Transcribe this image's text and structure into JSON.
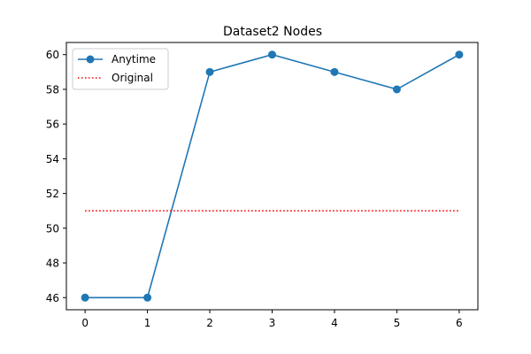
{
  "chart_data": {
    "type": "line",
    "title": "Dataset2 Nodes",
    "xlabel": "",
    "ylabel": "",
    "x": [
      0,
      1,
      2,
      3,
      4,
      5,
      6
    ],
    "xlim": [
      -0.3,
      6.3
    ],
    "ylim": [
      45.3,
      60.7
    ],
    "xticks": [
      0,
      1,
      2,
      3,
      4,
      5,
      6
    ],
    "yticks": [
      46,
      48,
      50,
      52,
      54,
      56,
      58,
      60
    ],
    "grid": false,
    "legend_position": "top-left",
    "series": [
      {
        "name": "Anytime",
        "values": [
          46,
          46,
          59,
          60,
          59,
          58,
          60
        ],
        "color": "#1f77b4",
        "style": "solid",
        "marker": "circle"
      },
      {
        "name": "Original",
        "values": [
          51,
          51,
          51,
          51,
          51,
          51,
          51
        ],
        "color": "#ff0000",
        "style": "dotted",
        "marker": "none"
      }
    ]
  }
}
